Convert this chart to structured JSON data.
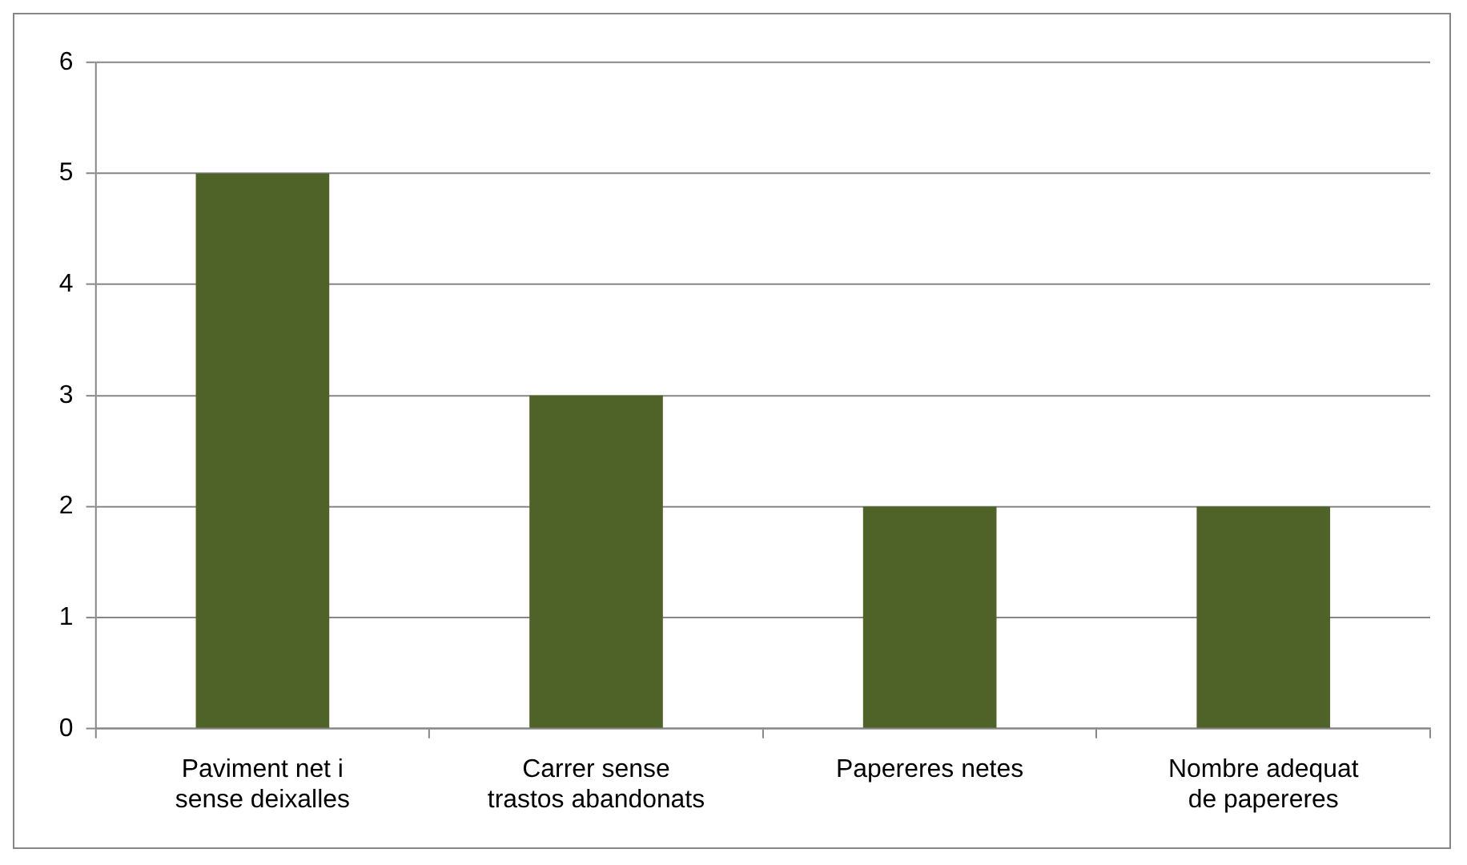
{
  "chart_data": {
    "type": "bar",
    "categories": [
      "Paviment net i sense deixalles",
      "Carrer sense trastos abandonats",
      "Papereres netes",
      "Nombre adequat de papereres"
    ],
    "values": [
      5,
      3,
      2,
      2
    ],
    "color": "#4f6228",
    "ylim": [
      0,
      6
    ],
    "yticks": [
      0,
      1,
      2,
      3,
      4,
      5,
      6
    ],
    "grid": "y"
  }
}
